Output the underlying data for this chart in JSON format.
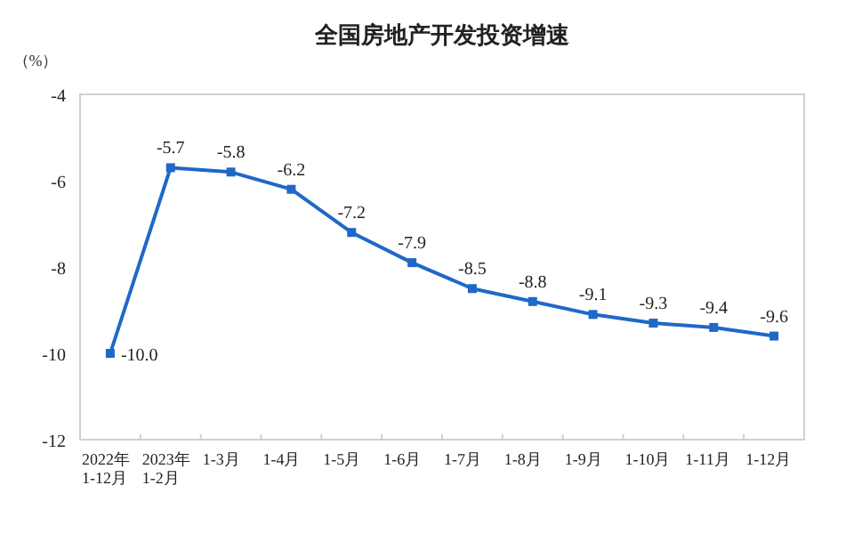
{
  "chart_data": {
    "type": "line",
    "title": "全国房地产开发投资增速",
    "ylabel": "（%）",
    "categories": [
      "2022年\n1-12月",
      "2023年\n1-2月",
      "1-3月",
      "1-4月",
      "1-5月",
      "1-6月",
      "1-7月",
      "1-8月",
      "1-9月",
      "1-10月",
      "1-11月",
      "1-12月"
    ],
    "series": [
      {
        "color": "#1f68c8",
        "values": [
          -10.0,
          -5.7,
          -5.8,
          -6.2,
          -7.2,
          -7.9,
          -8.5,
          -8.8,
          -9.1,
          -9.3,
          -9.4,
          -9.6
        ],
        "value_labels": [
          "-10.0",
          "-5.7",
          "-5.8",
          "-6.2",
          "-7.2",
          "-7.9",
          "-8.5",
          "-8.8",
          "-9.1",
          "-9.3",
          "-9.4",
          "-9.6"
        ]
      }
    ],
    "ylim": [
      -12,
      -4
    ],
    "yticks": [
      -12,
      -10,
      -8,
      -6,
      -4
    ],
    "marker": "square",
    "line_style": "solid",
    "grid": false
  }
}
